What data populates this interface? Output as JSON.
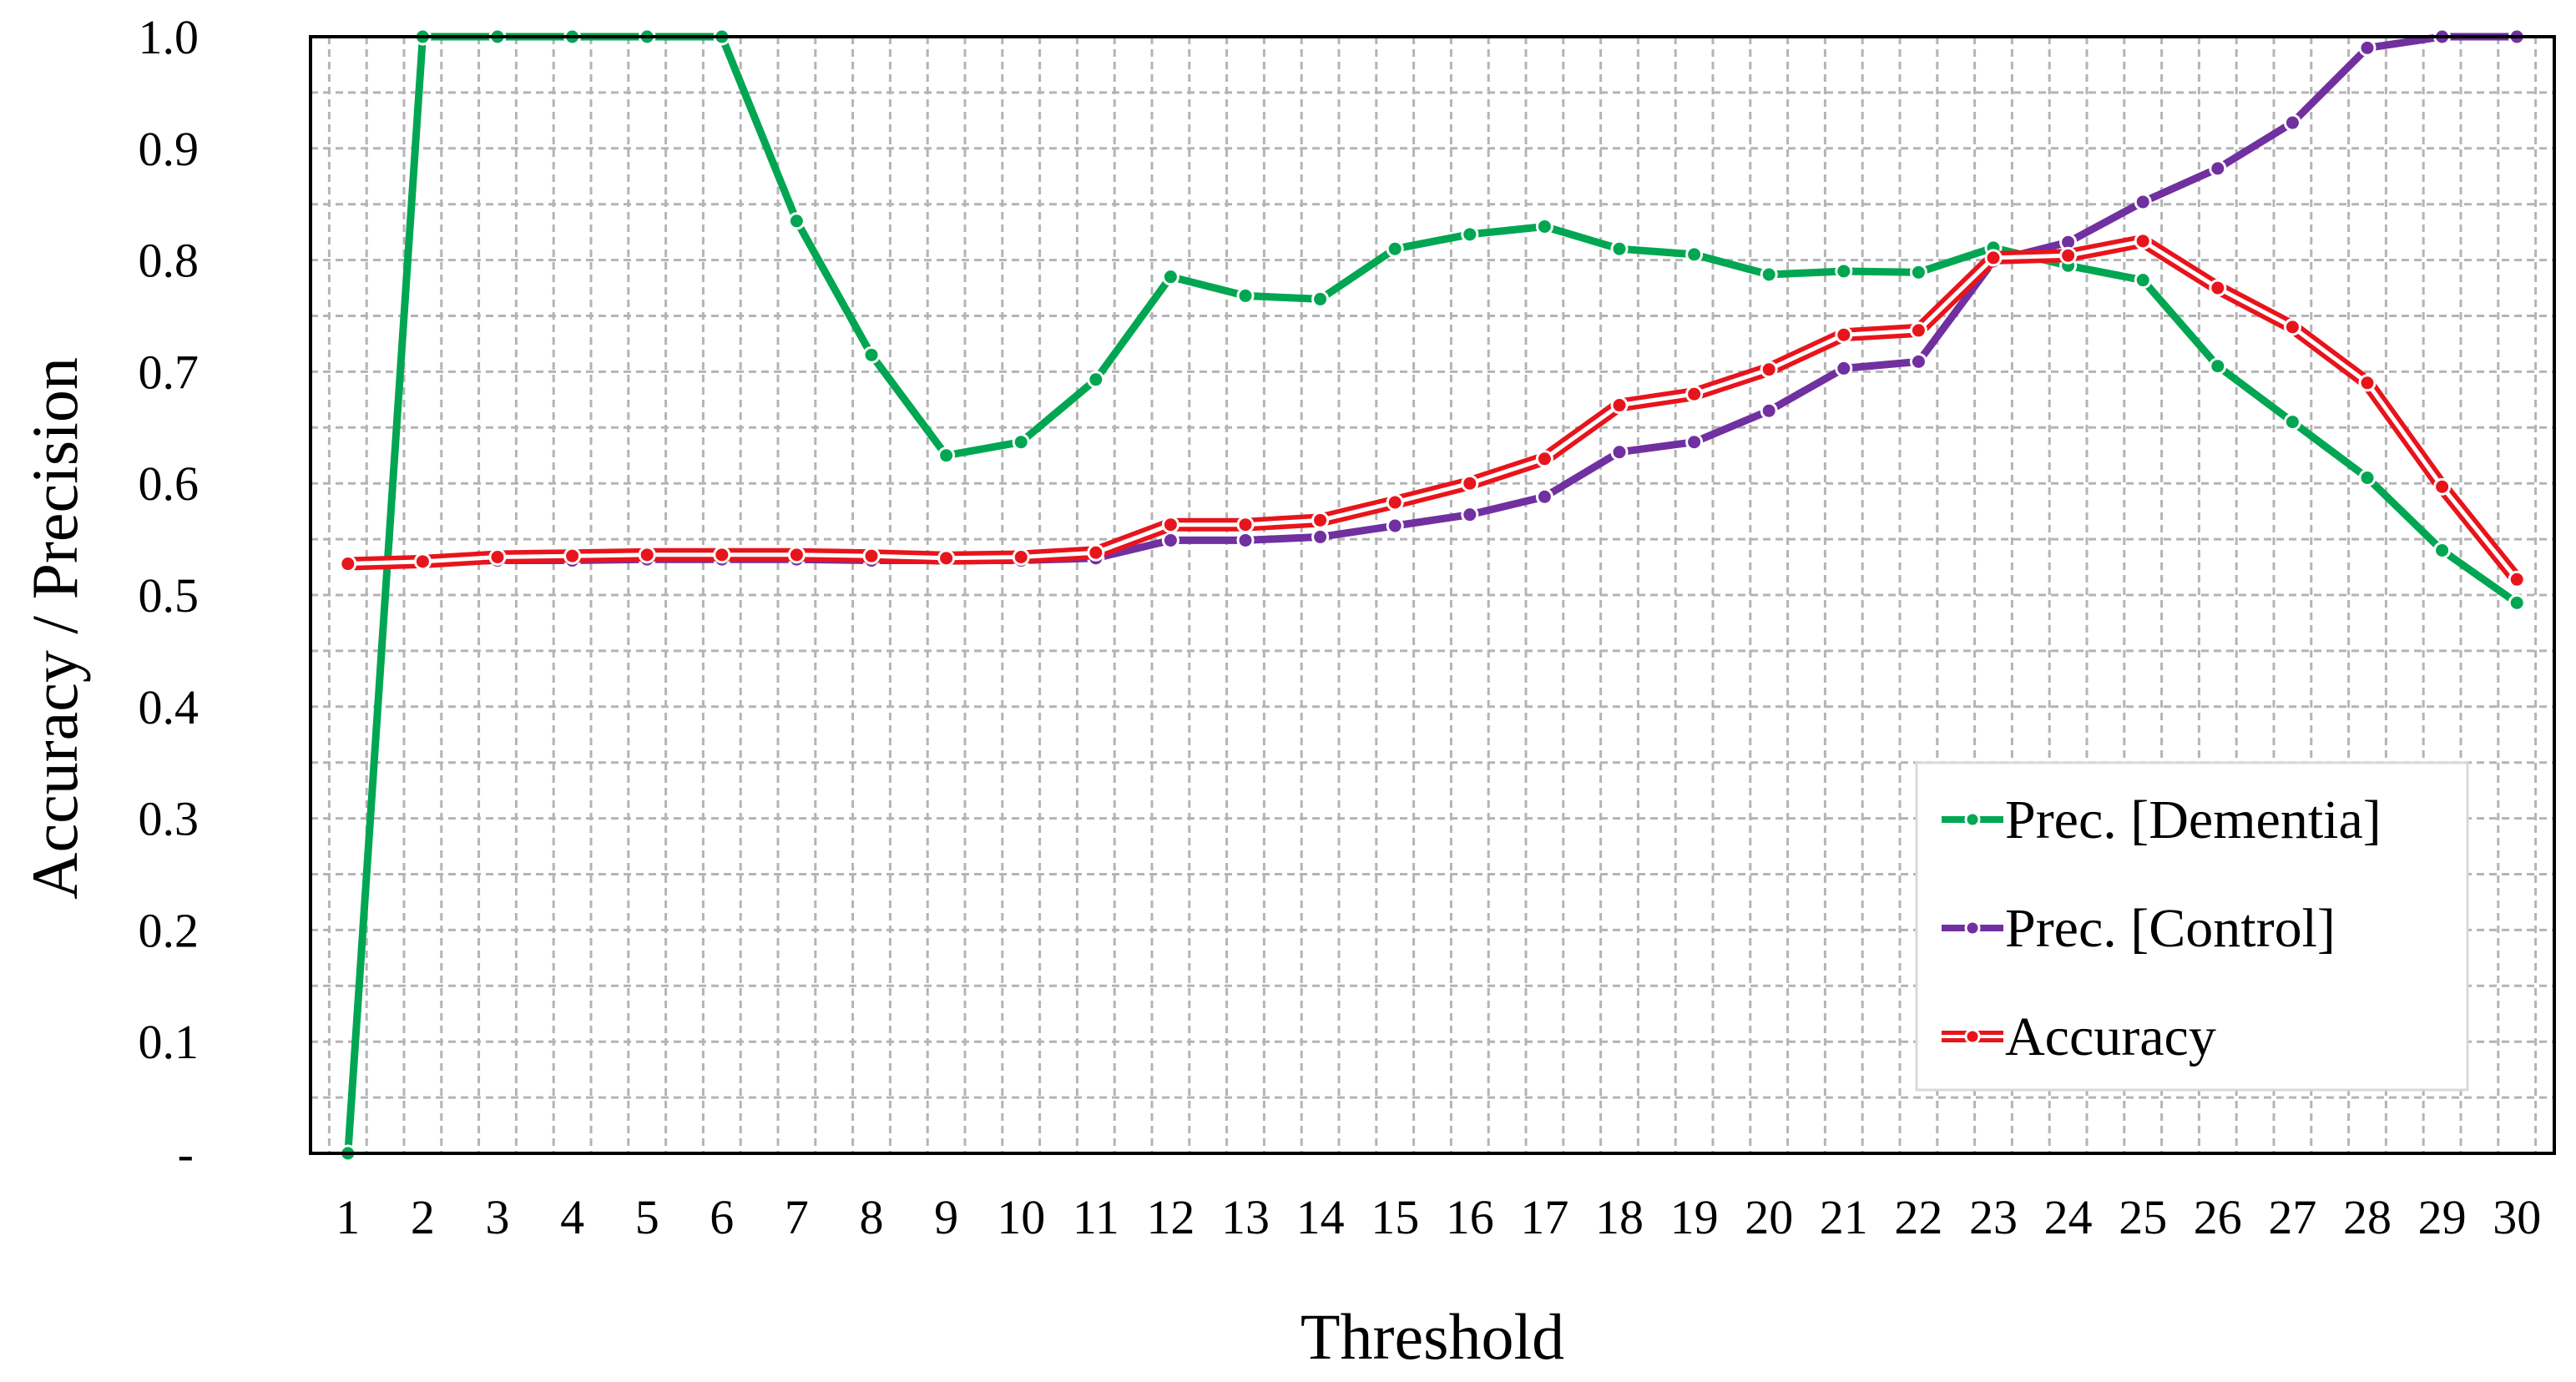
{
  "chart_data": {
    "type": "line",
    "title": "",
    "xlabel": "Threshold",
    "ylabel": "Accuracy / Precision",
    "x": [
      1,
      2,
      3,
      4,
      5,
      6,
      7,
      8,
      9,
      10,
      11,
      12,
      13,
      14,
      15,
      16,
      17,
      18,
      19,
      20,
      21,
      22,
      23,
      24,
      25,
      26,
      27,
      28,
      29,
      30
    ],
    "x_tick_labels": [
      "1",
      "2",
      "3",
      "4",
      "5",
      "6",
      "7",
      "8",
      "9",
      "10",
      "11",
      "12",
      "13",
      "14",
      "15",
      "16",
      "17",
      "18",
      "19",
      "20",
      "21",
      "22",
      "23",
      "24",
      "25",
      "26",
      "27",
      "28",
      "29",
      "30"
    ],
    "y_tick_labels": [
      "-",
      "0.1",
      "0.2",
      "0.3",
      "0.4",
      "0.5",
      "0.6",
      "0.7",
      "0.8",
      "0.9",
      "1.0"
    ],
    "ylim": [
      0,
      1.0
    ],
    "grid": true,
    "legend_position": "bottom-right",
    "series": [
      {
        "name": "Prec. [Dementia]",
        "color": "#00a651",
        "values": [
          0.0,
          1.0,
          1.0,
          1.0,
          1.0,
          1.0,
          0.835,
          0.715,
          0.625,
          0.637,
          0.693,
          0.785,
          0.768,
          0.765,
          0.81,
          0.823,
          0.83,
          0.81,
          0.805,
          0.787,
          0.79,
          0.789,
          0.811,
          0.795,
          0.782,
          0.705,
          0.655,
          0.605,
          0.54,
          0.493
        ]
      },
      {
        "name": "Prec. [Control]",
        "color": "#7030a0",
        "values": [
          0.528,
          0.529,
          0.531,
          0.531,
          0.532,
          0.532,
          0.532,
          0.531,
          0.531,
          0.531,
          0.533,
          0.549,
          0.549,
          0.552,
          0.562,
          0.572,
          0.588,
          0.628,
          0.637,
          0.665,
          0.703,
          0.709,
          0.799,
          0.816,
          0.852,
          0.882,
          0.923,
          0.99,
          1.0,
          1.0
        ]
      },
      {
        "name": "Accuracy",
        "color": "#e8141c",
        "values": [
          0.528,
          0.53,
          0.534,
          0.535,
          0.536,
          0.536,
          0.536,
          0.535,
          0.533,
          0.534,
          0.538,
          0.563,
          0.563,
          0.567,
          0.583,
          0.6,
          0.622,
          0.67,
          0.68,
          0.702,
          0.733,
          0.737,
          0.802,
          0.804,
          0.817,
          0.775,
          0.74,
          0.69,
          0.597,
          0.514
        ]
      }
    ]
  }
}
